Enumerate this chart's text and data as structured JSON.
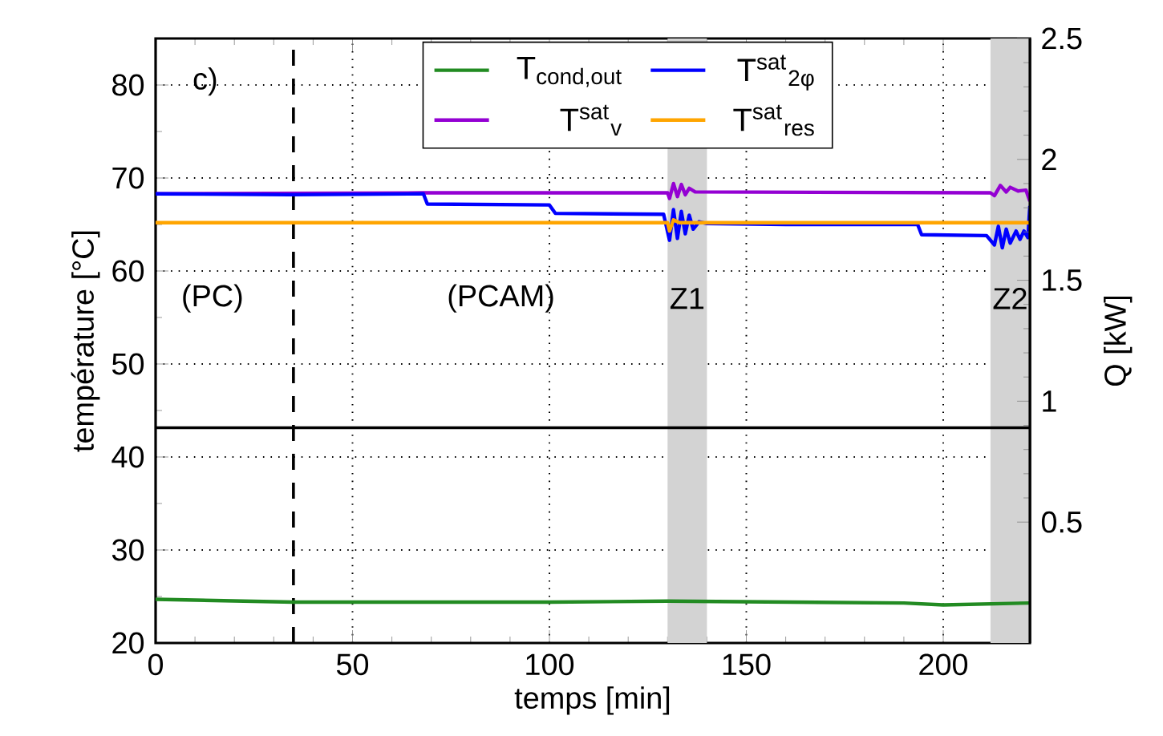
{
  "chart_data": {
    "type": "line",
    "xlabel": "temps [min]",
    "ylabel": "température [°C]",
    "y2label": "Q [kW]",
    "xlim": [
      0,
      222
    ],
    "xticks": [
      0,
      50,
      100,
      150,
      200
    ],
    "ylim": [
      20,
      85
    ],
    "yticks": [
      20,
      30,
      40,
      50,
      60,
      70,
      80
    ],
    "y2lim": [
      0,
      2.5
    ],
    "y2ticks": [
      0.5,
      1,
      1.5,
      2,
      2.5
    ],
    "grid": true,
    "legend": "top",
    "line_style": "solid",
    "marker": "none",
    "series": [
      {
        "name": "T$_{cond,out}$",
        "color": "#228b22",
        "x": [
          0,
          35,
          100,
          130,
          190,
          200,
          222
        ],
        "values": [
          24.7,
          24.4,
          24.4,
          24.5,
          24.3,
          24.1,
          24.3
        ]
      },
      {
        "name": "T$^{sat}$$_{v}$",
        "color": "#9400d3",
        "x": [
          0,
          68,
          130,
          130.5,
          131.5,
          132.5,
          133.5,
          134.5,
          135.5,
          137,
          212,
          213,
          214.5,
          216,
          217,
          219,
          221,
          222
        ],
        "values": [
          68.3,
          68.4,
          68.4,
          67.8,
          69.4,
          68.0,
          69.3,
          68.2,
          68.9,
          68.5,
          68.4,
          68.1,
          69.2,
          68.5,
          69.0,
          68.6,
          68.7,
          67.5
        ]
      },
      {
        "name": "T$^{sat}$$_{2φ}$",
        "color": "#0000ff",
        "x": [
          0,
          34,
          68,
          69,
          100,
          101.5,
          129,
          130.5,
          131.5,
          132.5,
          133.5,
          134.5,
          135.5,
          136.5,
          138,
          140,
          160,
          193.5,
          194.5,
          211,
          213,
          214,
          215,
          216,
          217,
          218.5,
          219.5,
          220.5,
          221.5,
          222
        ],
        "values": [
          68.3,
          68.2,
          68.3,
          67.2,
          67.1,
          66.2,
          66.1,
          63.3,
          66.6,
          63.5,
          66.4,
          64.0,
          66.0,
          64.5,
          65.3,
          65.1,
          65.0,
          65.0,
          63.9,
          63.8,
          62.8,
          64.8,
          62.5,
          64.5,
          63.0,
          64.3,
          63.4,
          64.3,
          63.6,
          67.0
        ]
      },
      {
        "name": "T$^{sat}$$_{res}$",
        "color": "#ffa500",
        "x": [
          0,
          130,
          130.5,
          131.5,
          133,
          222
        ],
        "values": [
          65.2,
          65.2,
          64.3,
          65.5,
          65.2,
          65.2
        ]
      },
      {
        "color": "#000000",
        "axis": "y2",
        "x": [
          0,
          222
        ],
        "values": [
          0.89,
          0.89
        ]
      }
    ],
    "ref_lines": [
      {
        "axis": "x",
        "value": 35,
        "color": "#000000",
        "line_style": "dashed"
      }
    ],
    "bands": [
      {
        "axis": "x",
        "from": 130,
        "to": 140,
        "label": "Z1",
        "color": "#d3d3d3"
      },
      {
        "axis": "x",
        "from": 212,
        "to": 222,
        "label": "Z2",
        "color": "#d3d3d3"
      }
    ],
    "annotations": [
      "c)",
      "(PC)",
      "(PCAM)"
    ]
  }
}
